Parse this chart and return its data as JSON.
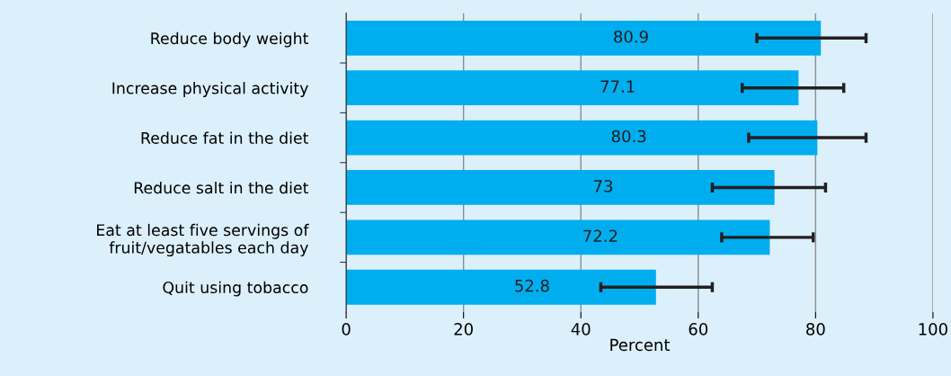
{
  "chart_data": {
    "type": "bar",
    "orientation": "horizontal",
    "xlabel": "Percent",
    "categories": [
      "Reduce body weight",
      "Increase physical activity",
      "Reduce fat in the diet",
      "Reduce salt in the diet",
      "Eat at least five servings of\nfruit/vegatables each day",
      "Quit using tobacco"
    ],
    "values": [
      80.9,
      77.1,
      80.3,
      73,
      72.2,
      52.8
    ],
    "errors": [
      [
        70.0,
        88.6
      ],
      [
        67.5,
        84.8
      ],
      [
        68.6,
        88.6
      ],
      [
        62.4,
        81.7
      ],
      [
        64.0,
        79.6
      ],
      [
        43.4,
        62.4
      ]
    ],
    "color": "#00aeef",
    "data_labels": true,
    "grid": "x",
    "xlim": [
      0,
      100
    ],
    "xticks": [
      0,
      20,
      40,
      60,
      80,
      100
    ]
  }
}
